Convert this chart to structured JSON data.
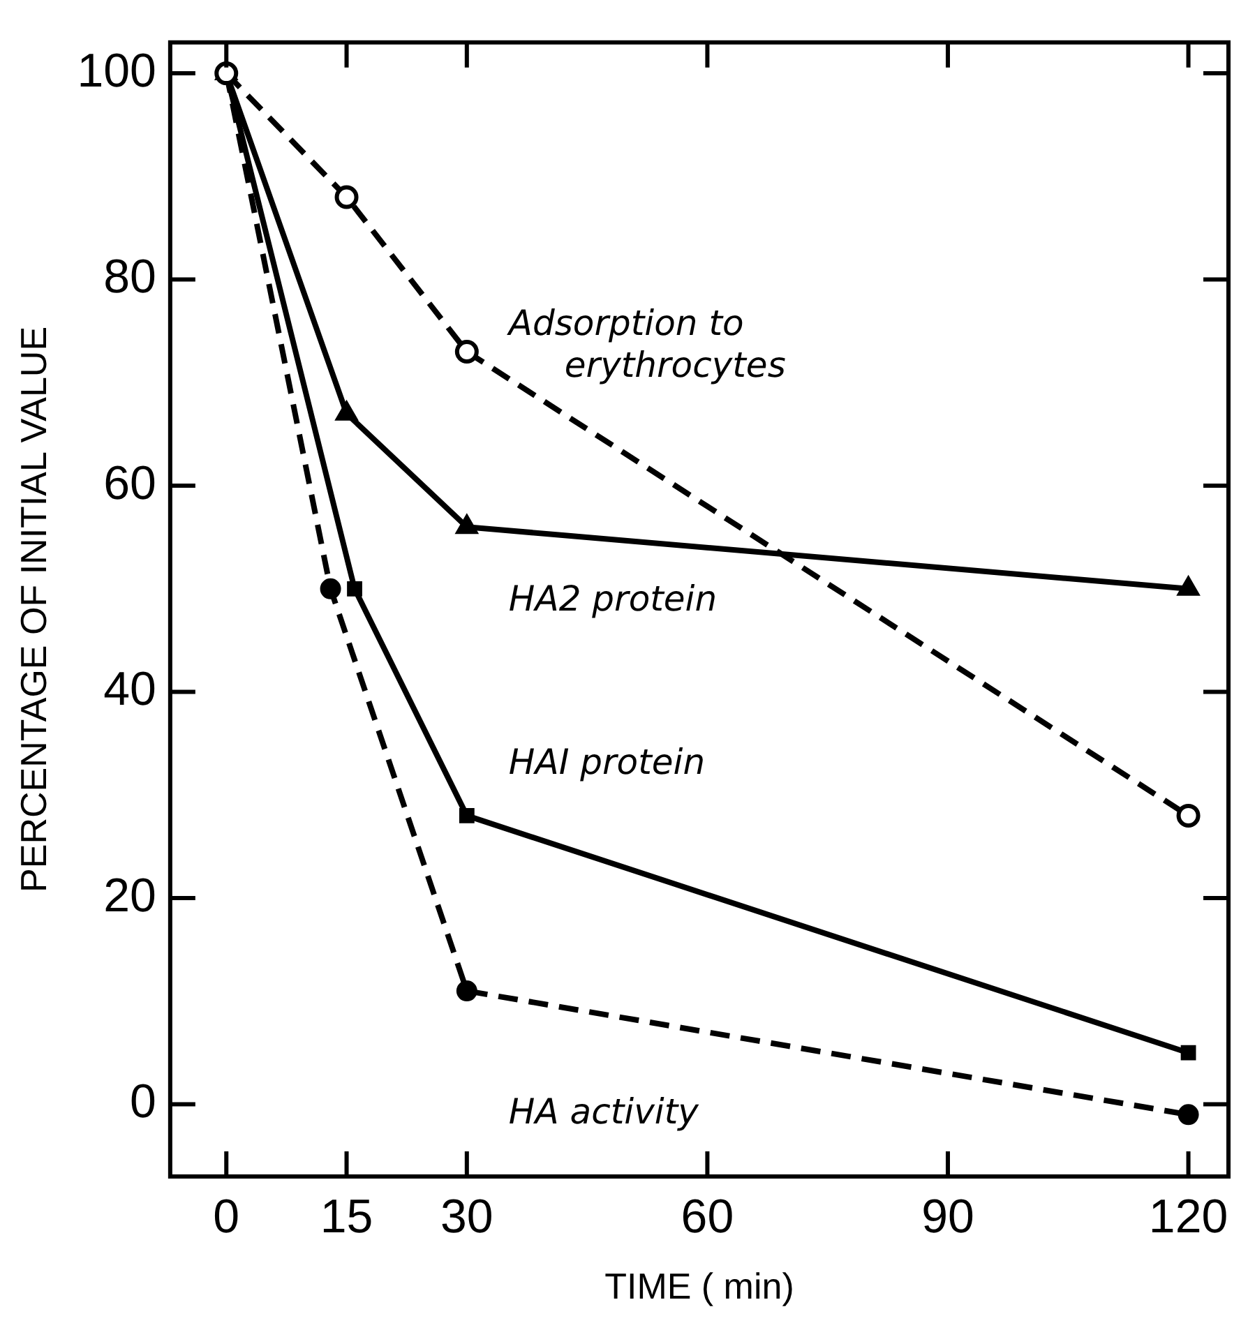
{
  "chart_data": {
    "type": "line",
    "xlabel": "TIME ( min)",
    "ylabel": "PERCENTAGE OF INITIAL VALUE",
    "xlim": [
      -7,
      125
    ],
    "xticks": [
      0,
      15,
      30,
      60,
      90,
      120
    ],
    "ylim": [
      -7,
      103
    ],
    "yticks": [
      0,
      20,
      40,
      60,
      80,
      100
    ],
    "grid": false,
    "legend": false,
    "series": [
      {
        "name": "Adsorption to erythrocytes",
        "color": "#000000",
        "marker": "circle",
        "line_style": "dashed",
        "x": [
          0,
          15,
          30,
          120
        ],
        "values": [
          100,
          88,
          73,
          28
        ]
      },
      {
        "name": "HA2 protein",
        "color": "#000000",
        "marker": "triangle",
        "line_style": "solid",
        "x": [
          0,
          15,
          30,
          120
        ],
        "values": [
          100,
          67,
          56,
          50
        ]
      },
      {
        "name": "HAI protein",
        "color": "#000000",
        "marker": "square",
        "line_style": "solid",
        "x": [
          0,
          16,
          30,
          120
        ],
        "values": [
          100,
          50,
          28,
          5
        ]
      },
      {
        "name": "HA activity",
        "color": "#000000",
        "marker": "circle",
        "line_style": "dashed",
        "x": [
          0,
          13,
          30,
          120
        ],
        "values": [
          100,
          50,
          11,
          -1
        ]
      }
    ]
  }
}
